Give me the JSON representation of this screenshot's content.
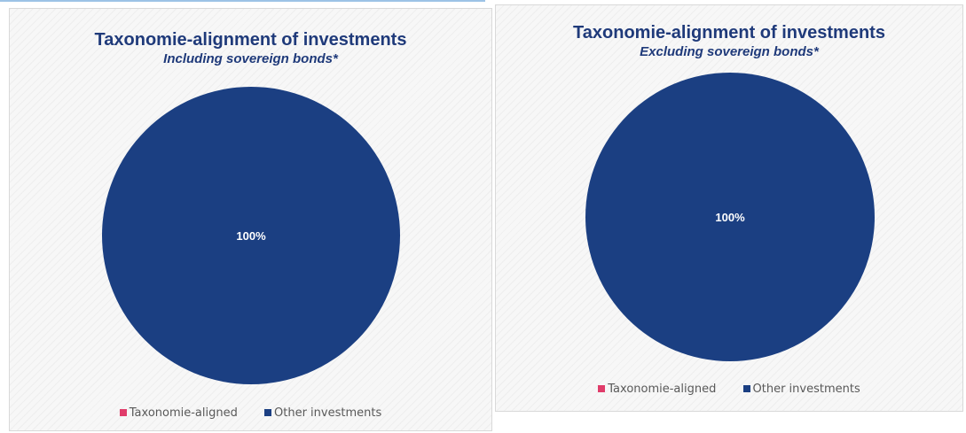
{
  "colors": {
    "title": "#1f3a7a",
    "taxonomie_aligned": "#e03c6a",
    "other_investments": "#1b3f82",
    "label": "#ffffff"
  },
  "chart_data": [
    {
      "type": "pie",
      "title": "Taxonomie-alignment of investments",
      "subtitle": "Including sovereign bonds*",
      "legend_position": "bottom",
      "series": [
        {
          "name": "Taxonomie-aligned",
          "value": 0,
          "label": ""
        },
        {
          "name": "Other investments",
          "value": 100,
          "label": "100%"
        }
      ]
    },
    {
      "type": "pie",
      "title": "Taxonomie-alignment of investments",
      "subtitle": "Excluding sovereign bonds*",
      "legend_position": "bottom",
      "series": [
        {
          "name": "Taxonomie-aligned",
          "value": 0,
          "label": ""
        },
        {
          "name": "Other investments",
          "value": 100,
          "label": "100%"
        }
      ]
    }
  ]
}
